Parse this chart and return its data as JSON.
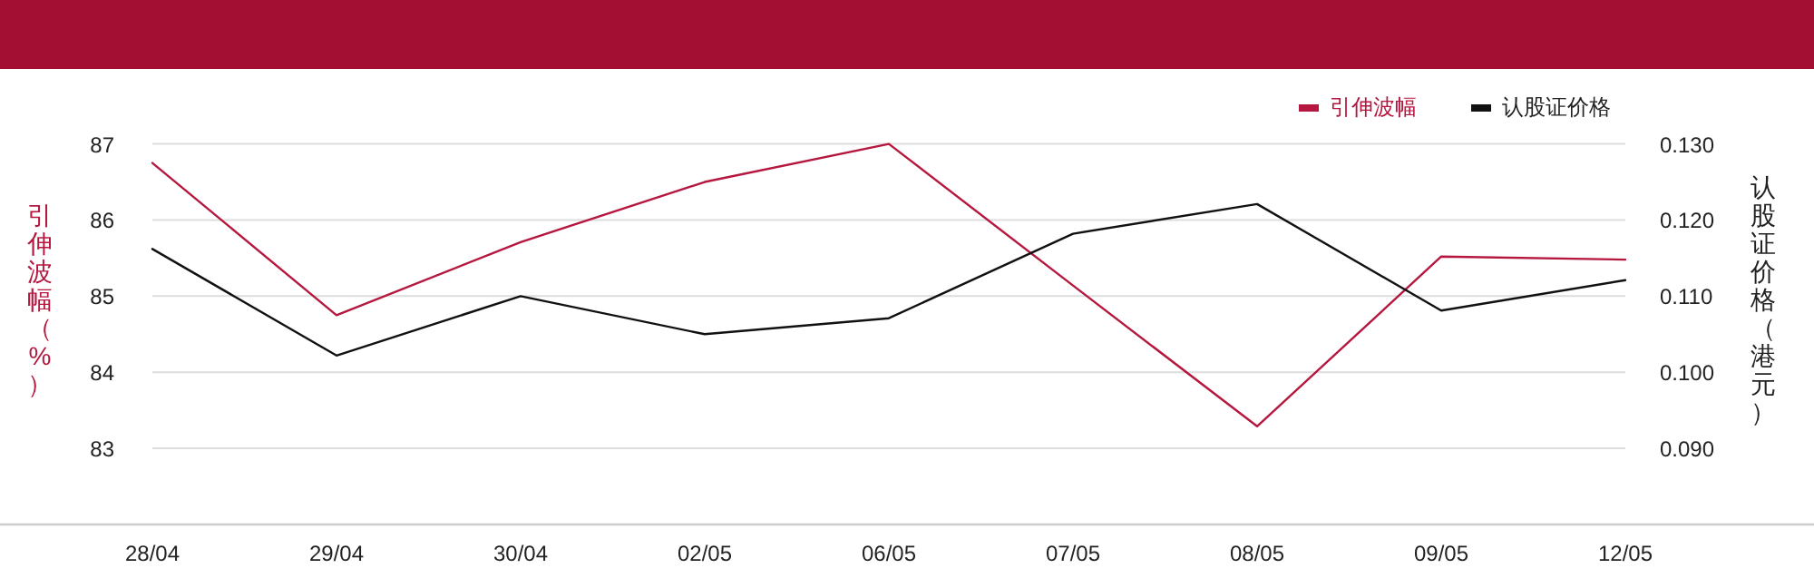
{
  "chart_data": {
    "type": "line",
    "categories": [
      "28/04",
      "29/04",
      "30/04",
      "02/05",
      "06/05",
      "07/05",
      "08/05",
      "09/05",
      "12/05"
    ],
    "series": [
      {
        "name": "引伸波幅",
        "color": "#b5173f",
        "values": [
          86.75,
          84.75,
          85.71,
          86.5,
          87.0,
          85.14,
          83.29,
          85.52,
          85.48
        ]
      },
      {
        "name": "认股证价格",
        "color": "#111111",
        "axis": "y2",
        "values": [
          0.1162,
          0.1022,
          0.11,
          0.105,
          0.1071,
          0.1182,
          0.1221,
          0.1081,
          0.1121
        ]
      }
    ],
    "ylabel": "引伸波幅（%）",
    "y2label": "认股证价格（港元）",
    "ylim": [
      82,
      87
    ],
    "yticks": [
      83,
      84,
      85,
      86,
      87
    ],
    "y2lim": [
      0.08,
      0.13
    ],
    "y2ticks": [
      {
        "value": 0.09,
        "label": "0.090"
      },
      {
        "value": 0.1,
        "label": "0.100"
      },
      {
        "value": 0.11,
        "label": "0.110"
      },
      {
        "value": 0.12,
        "label": "0.120"
      },
      {
        "value": 0.13,
        "label": "0.130"
      }
    ],
    "grid": "y",
    "legend": "top right"
  }
}
